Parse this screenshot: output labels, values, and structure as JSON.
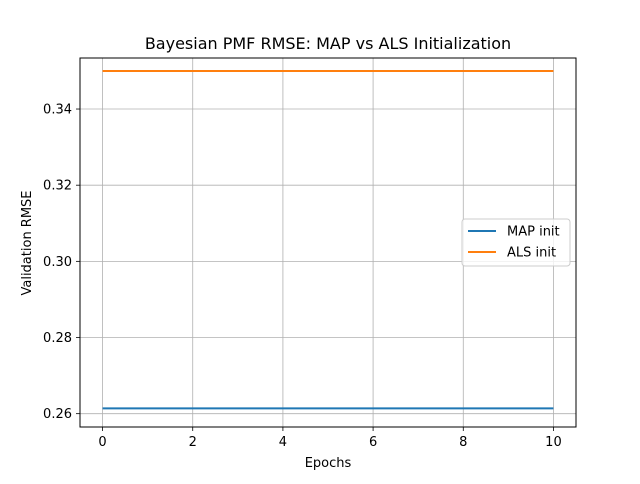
{
  "chart_data": {
    "type": "line",
    "title": "Bayesian PMF RMSE: MAP vs ALS Initialization",
    "xlabel": "Epochs",
    "ylabel": "Validation RMSE",
    "xlim": [
      -0.5,
      10.5
    ],
    "ylim": [
      0.2565,
      0.3534
    ],
    "xticks": [
      0,
      2,
      4,
      6,
      8,
      10
    ],
    "xtick_labels": [
      "0",
      "2",
      "4",
      "6",
      "8",
      "10"
    ],
    "yticks": [
      0.26,
      0.28,
      0.3,
      0.32,
      0.34
    ],
    "ytick_labels": [
      "0.26",
      "0.28",
      "0.30",
      "0.32",
      "0.34"
    ],
    "grid": true,
    "legend_position": "center-right",
    "series": [
      {
        "name": "MAP init",
        "color": "#1f77b4",
        "x": [
          0,
          1,
          2,
          3,
          4,
          5,
          6,
          7,
          8,
          9,
          10
        ],
        "y": [
          0.2614,
          0.2614,
          0.2614,
          0.2614,
          0.2614,
          0.2614,
          0.2614,
          0.2614,
          0.2614,
          0.2614,
          0.2614
        ]
      },
      {
        "name": "ALS init",
        "color": "#ff7f0e",
        "x": [
          0,
          1,
          2,
          3,
          4,
          5,
          6,
          7,
          8,
          9,
          10
        ],
        "y": [
          0.35,
          0.35,
          0.35,
          0.35,
          0.35,
          0.35,
          0.35,
          0.35,
          0.35,
          0.35,
          0.35
        ]
      }
    ]
  }
}
